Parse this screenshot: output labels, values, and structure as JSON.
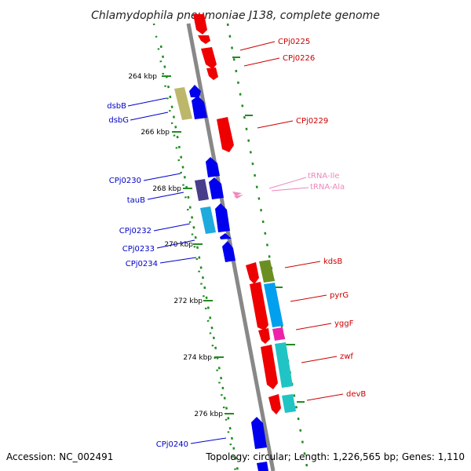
{
  "title": "Chlamydophila pneumoniae J138, complete genome",
  "accession": "Accession: NC_002491",
  "topology": "Topology: circular; Length: 1,226,565 bp; Genes: 1,110",
  "scale_labels": [
    "264 kbp",
    "266 kbp",
    "268 kbp",
    "270 kbp",
    "272 kbp",
    "274 kbp",
    "276 kbp"
  ],
  "colors": {
    "backbone": "#888888",
    "tick": "#228b22",
    "left_label": "#0000cc",
    "right_label": "#cc0000",
    "trna_label": "#ee88bb",
    "gene_red": "#ee0000",
    "gene_blue": "#0000ee"
  },
  "left_labels": [
    "dsbB",
    "dsbG",
    "CPj0230",
    "tauB",
    "CPj0232",
    "CPj0233",
    "CPj0234",
    "CPj0240"
  ],
  "right_labels": [
    "CPj0225",
    "CPj0226",
    "CPj0229",
    "kdsB",
    "pyrG",
    "yggF",
    "zwf",
    "devB"
  ],
  "trna_labels": [
    "tRNA-Ile",
    "tRNA-Ala"
  ]
}
